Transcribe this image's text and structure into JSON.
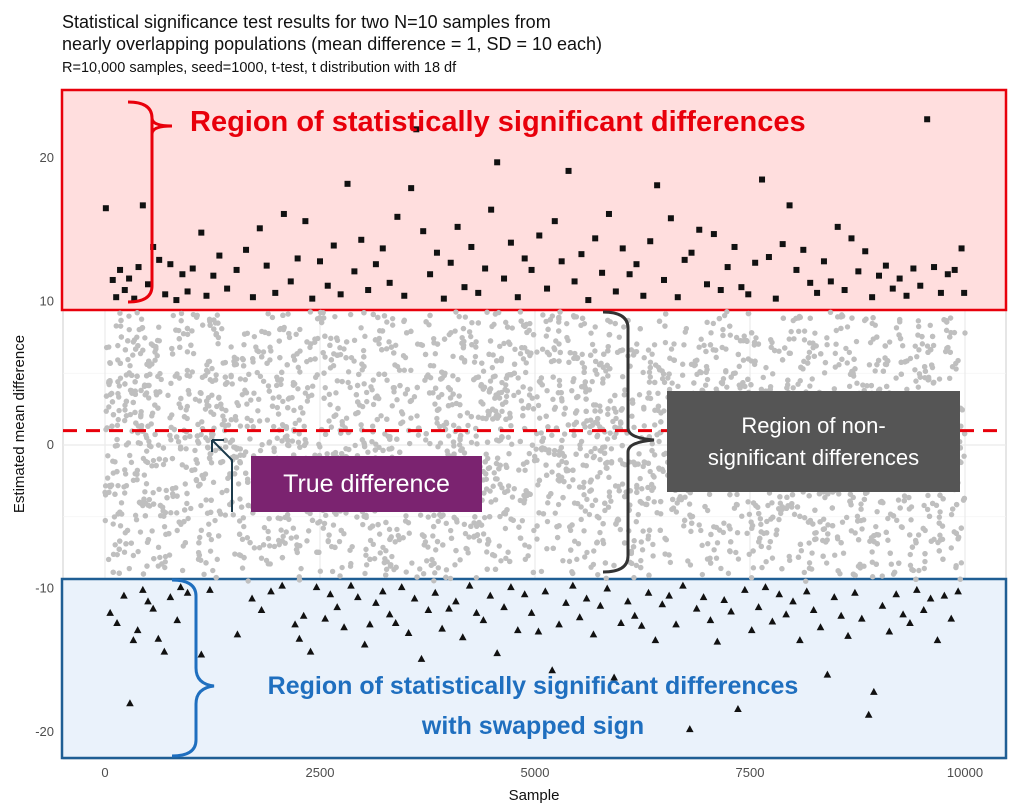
{
  "chart_data": {
    "type": "scatter",
    "title": "Statistical significance test results for two N=10 samples from\nnearly overlapping populations (mean difference = 1, SD = 10 each)",
    "subtitle": "R=10,000 samples, seed=1000, t-test, t distribution with 18 df",
    "xlabel": "Sample",
    "ylabel": "Estimated mean difference",
    "xlim": [
      -500,
      10500
    ],
    "ylim": [
      -21.5,
      24.5
    ],
    "x_ticks": [
      0,
      2500,
      5000,
      7500,
      10000
    ],
    "y_ticks": [
      -20,
      -10,
      0,
      10,
      20
    ],
    "grid": true,
    "reference_line": {
      "y": 1,
      "style": "dashed",
      "color": "#e8000b"
    },
    "significance_threshold": 9.4,
    "series": [
      {
        "marker": "square",
        "color": "#111111",
        "points": [
          [
            10,
            16.5
          ],
          [
            90,
            11.5
          ],
          [
            130,
            10.3
          ],
          [
            175,
            12.2
          ],
          [
            230,
            10.8
          ],
          [
            280,
            11.6
          ],
          [
            340,
            10.2
          ],
          [
            390,
            12.4
          ],
          [
            440,
            16.7
          ],
          [
            500,
            11.2
          ],
          [
            560,
            13.8
          ],
          [
            630,
            12.9
          ],
          [
            700,
            10.5
          ],
          [
            760,
            12.6
          ],
          [
            830,
            10.1
          ],
          [
            900,
            11.9
          ],
          [
            960,
            10.7
          ],
          [
            1020,
            12.3
          ],
          [
            1120,
            14.8
          ],
          [
            1180,
            10.4
          ],
          [
            1260,
            11.8
          ],
          [
            1330,
            13.2
          ],
          [
            1420,
            10.9
          ],
          [
            1530,
            12.2
          ],
          [
            1640,
            13.6
          ],
          [
            1720,
            10.3
          ],
          [
            1800,
            15.1
          ],
          [
            1880,
            12.5
          ],
          [
            1980,
            10.6
          ],
          [
            2080,
            16.1
          ],
          [
            2160,
            11.4
          ],
          [
            2240,
            13.0
          ],
          [
            2330,
            15.6
          ],
          [
            2410,
            10.2
          ],
          [
            2500,
            12.8
          ],
          [
            2590,
            11.1
          ],
          [
            2660,
            13.9
          ],
          [
            2740,
            10.5
          ],
          [
            2820,
            18.2
          ],
          [
            2900,
            12.1
          ],
          [
            2980,
            14.3
          ],
          [
            3060,
            10.8
          ],
          [
            3150,
            12.6
          ],
          [
            3230,
            13.7
          ],
          [
            3310,
            11.3
          ],
          [
            3400,
            15.9
          ],
          [
            3480,
            10.4
          ],
          [
            3560,
            17.9
          ],
          [
            3620,
            22.0
          ],
          [
            3700,
            14.9
          ],
          [
            3780,
            11.9
          ],
          [
            3860,
            13.4
          ],
          [
            3940,
            10.2
          ],
          [
            4020,
            12.7
          ],
          [
            4100,
            15.2
          ],
          [
            4180,
            11.0
          ],
          [
            4260,
            13.8
          ],
          [
            4340,
            10.6
          ],
          [
            4420,
            12.3
          ],
          [
            4490,
            16.4
          ],
          [
            4560,
            19.7
          ],
          [
            4640,
            11.6
          ],
          [
            4720,
            14.1
          ],
          [
            4800,
            10.3
          ],
          [
            4880,
            13.0
          ],
          [
            4960,
            12.2
          ],
          [
            5050,
            14.6
          ],
          [
            5140,
            10.9
          ],
          [
            5230,
            15.6
          ],
          [
            5310,
            12.8
          ],
          [
            5390,
            19.1
          ],
          [
            5460,
            11.4
          ],
          [
            5540,
            13.3
          ],
          [
            5620,
            10.1
          ],
          [
            5700,
            14.4
          ],
          [
            5780,
            12.0
          ],
          [
            5860,
            16.1
          ],
          [
            5940,
            10.7
          ],
          [
            6020,
            13.7
          ],
          [
            6100,
            11.9
          ],
          [
            6180,
            12.6
          ],
          [
            6260,
            10.4
          ],
          [
            6340,
            14.2
          ],
          [
            6420,
            18.1
          ],
          [
            6500,
            11.5
          ],
          [
            6580,
            15.8
          ],
          [
            6660,
            10.3
          ],
          [
            6740,
            12.9
          ],
          [
            6820,
            13.4
          ],
          [
            6910,
            15.0
          ],
          [
            7000,
            11.2
          ],
          [
            7080,
            14.7
          ],
          [
            7160,
            10.8
          ],
          [
            7240,
            12.4
          ],
          [
            7320,
            13.8
          ],
          [
            7400,
            11.0
          ],
          [
            7480,
            10.5
          ],
          [
            7560,
            12.7
          ],
          [
            7640,
            18.5
          ],
          [
            7720,
            13.1
          ],
          [
            7800,
            10.2
          ],
          [
            7880,
            14.0
          ],
          [
            7960,
            16.7
          ],
          [
            8040,
            12.2
          ],
          [
            8120,
            13.6
          ],
          [
            8200,
            11.3
          ],
          [
            8280,
            10.6
          ],
          [
            8360,
            12.8
          ],
          [
            8440,
            11.4
          ],
          [
            8520,
            15.2
          ],
          [
            8600,
            10.8
          ],
          [
            8680,
            14.4
          ],
          [
            8760,
            12.1
          ],
          [
            8840,
            13.5
          ],
          [
            8920,
            10.3
          ],
          [
            9000,
            11.8
          ],
          [
            9080,
            12.5
          ],
          [
            9160,
            10.9
          ],
          [
            9240,
            11.6
          ],
          [
            9320,
            10.4
          ],
          [
            9400,
            12.3
          ],
          [
            9480,
            11.1
          ],
          [
            9560,
            22.7
          ],
          [
            9640,
            12.4
          ],
          [
            9720,
            10.6
          ],
          [
            9800,
            11.9
          ],
          [
            9880,
            12.2
          ],
          [
            9960,
            13.7
          ],
          [
            9990,
            10.6
          ]
        ]
      },
      {
        "marker": "circle",
        "color": "#bfbfbf",
        "name": "",
        "points": "non-significant estimates between -9.4 and 9.4 for samples 0–10000"
      },
      {
        "marker": "triangle",
        "color": "#111111",
        "points": [
          [
            60,
            -11.7
          ],
          [
            140,
            -12.4
          ],
          [
            220,
            -10.5
          ],
          [
            290,
            -18.0
          ],
          [
            330,
            -13.6
          ],
          [
            380,
            -12.9
          ],
          [
            440,
            -10.1
          ],
          [
            500,
            -10.9
          ],
          [
            560,
            -11.4
          ],
          [
            620,
            -13.5
          ],
          [
            690,
            -14.4
          ],
          [
            760,
            -10.6
          ],
          [
            840,
            -12.2
          ],
          [
            880,
            -9.9
          ],
          [
            960,
            -10.3
          ],
          [
            1120,
            -14.6
          ],
          [
            1220,
            -10.1
          ],
          [
            1540,
            -13.2
          ],
          [
            1710,
            -10.7
          ],
          [
            1820,
            -11.5
          ],
          [
            1930,
            -10.2
          ],
          [
            2060,
            -9.8
          ],
          [
            2210,
            -12.5
          ],
          [
            2260,
            -13.5
          ],
          [
            2310,
            -11.9
          ],
          [
            2390,
            -14.4
          ],
          [
            2460,
            -9.9
          ],
          [
            2560,
            -12.1
          ],
          [
            2620,
            -10.4
          ],
          [
            2700,
            -11.3
          ],
          [
            2780,
            -12.7
          ],
          [
            2860,
            -9.8
          ],
          [
            2940,
            -10.6
          ],
          [
            3020,
            -13.9
          ],
          [
            3080,
            -12.5
          ],
          [
            3150,
            -11.0
          ],
          [
            3230,
            -10.2
          ],
          [
            3310,
            -11.8
          ],
          [
            3380,
            -12.4
          ],
          [
            3450,
            -9.9
          ],
          [
            3530,
            -13.1
          ],
          [
            3600,
            -10.7
          ],
          [
            3680,
            -14.9
          ],
          [
            3760,
            -11.5
          ],
          [
            3840,
            -10.3
          ],
          [
            3920,
            -12.8
          ],
          [
            4000,
            -11.4
          ],
          [
            4080,
            -10.9
          ],
          [
            4160,
            -13.4
          ],
          [
            4240,
            -9.8
          ],
          [
            4320,
            -11.7
          ],
          [
            4400,
            -12.2
          ],
          [
            4480,
            -10.5
          ],
          [
            4560,
            -14.5
          ],
          [
            4640,
            -11.3
          ],
          [
            4720,
            -9.9
          ],
          [
            4800,
            -12.9
          ],
          [
            4880,
            -10.4
          ],
          [
            4960,
            -11.7
          ],
          [
            5040,
            -13.0
          ],
          [
            5120,
            -10.2
          ],
          [
            5200,
            -15.7
          ],
          [
            5280,
            -12.5
          ],
          [
            5360,
            -11.0
          ],
          [
            5440,
            -9.8
          ],
          [
            5520,
            -12.0
          ],
          [
            5600,
            -10.7
          ],
          [
            5680,
            -13.2
          ],
          [
            5760,
            -11.2
          ],
          [
            5840,
            -10.0
          ],
          [
            5920,
            -16.2
          ],
          [
            6000,
            -12.4
          ],
          [
            6080,
            -10.9
          ],
          [
            6160,
            -11.9
          ],
          [
            6240,
            -12.6
          ],
          [
            6320,
            -10.3
          ],
          [
            6400,
            -13.6
          ],
          [
            6480,
            -11.1
          ],
          [
            6560,
            -10.5
          ],
          [
            6640,
            -12.5
          ],
          [
            6720,
            -9.8
          ],
          [
            6800,
            -19.8
          ],
          [
            6880,
            -11.4
          ],
          [
            6960,
            -10.6
          ],
          [
            7040,
            -12.2
          ],
          [
            7120,
            -13.7
          ],
          [
            7200,
            -10.8
          ],
          [
            7280,
            -11.6
          ],
          [
            7360,
            -18.4
          ],
          [
            7440,
            -10.1
          ],
          [
            7520,
            -12.9
          ],
          [
            7600,
            -11.3
          ],
          [
            7680,
            -9.9
          ],
          [
            7760,
            -12.3
          ],
          [
            7840,
            -10.4
          ],
          [
            7920,
            -11.8
          ],
          [
            8000,
            -10.9
          ],
          [
            8080,
            -13.6
          ],
          [
            8160,
            -10.2
          ],
          [
            8240,
            -11.5
          ],
          [
            8320,
            -12.7
          ],
          [
            8400,
            -16.0
          ],
          [
            8480,
            -10.6
          ],
          [
            8560,
            -11.9
          ],
          [
            8640,
            -13.3
          ],
          [
            8720,
            -10.3
          ],
          [
            8800,
            -12.1
          ],
          [
            8880,
            -18.8
          ],
          [
            8940,
            -17.2
          ],
          [
            9040,
            -11.2
          ],
          [
            9120,
            -13.0
          ],
          [
            9200,
            -10.4
          ],
          [
            9280,
            -11.8
          ],
          [
            9360,
            -12.4
          ],
          [
            9440,
            -10.1
          ],
          [
            9520,
            -11.5
          ],
          [
            9600,
            -10.7
          ],
          [
            9680,
            -13.6
          ],
          [
            9760,
            -10.5
          ],
          [
            9840,
            -12.1
          ],
          [
            9920,
            -10.2
          ]
        ]
      }
    ]
  },
  "annotations": {
    "upper_region": "Region of statistically significant differences",
    "lower_region_line1": "Region of statistically significant differences",
    "lower_region_line2": "with swapped sign",
    "true_difference": "True difference",
    "nonsig_region": "Region of non-\nsignificant differences"
  }
}
